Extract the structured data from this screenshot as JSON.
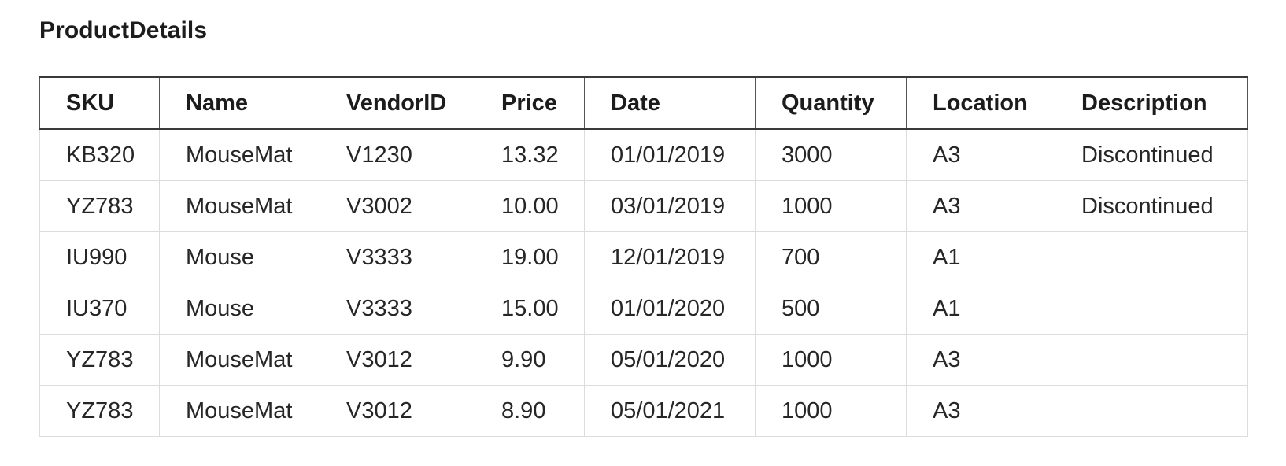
{
  "table": {
    "title": "ProductDetails",
    "columns": [
      "SKU",
      "Name",
      "VendorID",
      "Price",
      "Date",
      "Quantity",
      "Location",
      "Description"
    ],
    "rows": [
      [
        "KB320",
        "MouseMat",
        "V1230",
        "13.32",
        "01/01/2019",
        "3000",
        "A3",
        "Discontinued"
      ],
      [
        "YZ783",
        "MouseMat",
        "V3002",
        "10.00",
        "03/01/2019",
        "1000",
        "A3",
        "Discontinued"
      ],
      [
        "IU990",
        "Mouse",
        "V3333",
        "19.00",
        "12/01/2019",
        "700",
        "A1",
        ""
      ],
      [
        "IU370",
        "Mouse",
        "V3333",
        "15.00",
        "01/01/2020",
        "500",
        "A1",
        ""
      ],
      [
        "YZ783",
        "MouseMat",
        "V3012",
        "9.90",
        "05/01/2020",
        "1000",
        "A3",
        ""
      ],
      [
        "YZ783",
        "MouseMat",
        "V3012",
        "8.90",
        "05/01/2021",
        "1000",
        "A3",
        ""
      ]
    ]
  }
}
